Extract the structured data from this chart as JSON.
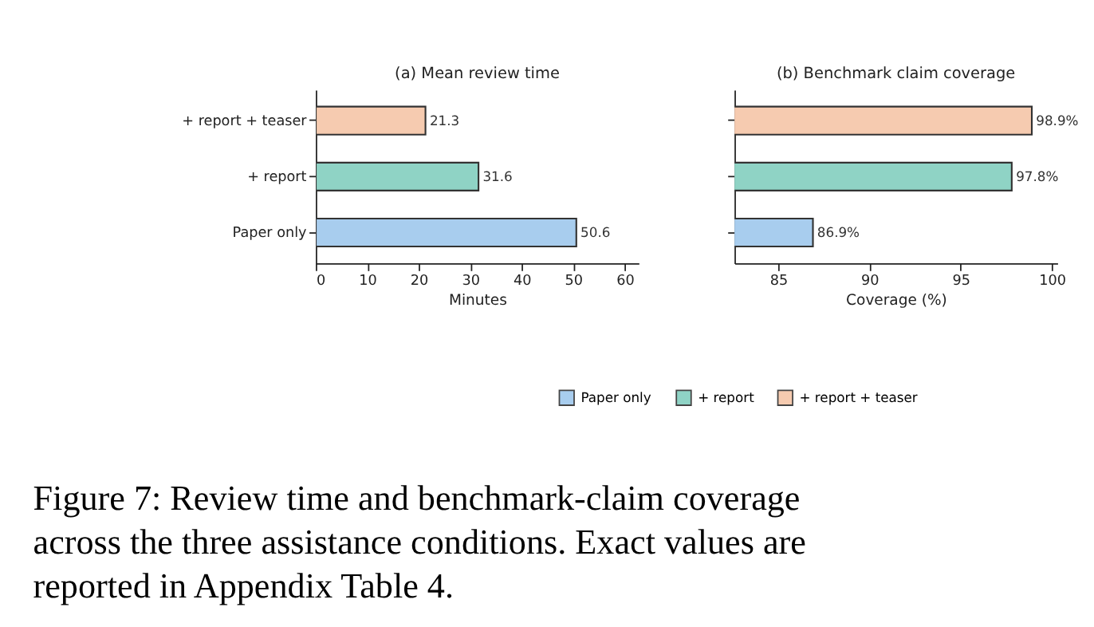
{
  "chart_data": [
    {
      "type": "bar",
      "orientation": "horizontal",
      "title": "(a) Mean review time",
      "xlabel": "Minutes",
      "categories": [
        "+ report + teaser",
        "+ report",
        "Paper only"
      ],
      "series": [
        {
          "name": "Paper only",
          "color": "#a8cdee",
          "values": [
            null,
            null,
            50.6
          ]
        },
        {
          "name": "+ report",
          "color": "#8fd3c5",
          "values": [
            null,
            31.6,
            null
          ]
        },
        {
          "name": "+ report + teaser",
          "color": "#f6cbb0",
          "values": [
            21.3,
            null,
            null
          ]
        }
      ],
      "xlim": [
        0,
        62.7
      ],
      "xticks": [
        0,
        10,
        20,
        30,
        40,
        50,
        60
      ],
      "data_labels": true,
      "legend": "bottom",
      "annotations": [
        "Figure 7: Review time and benchmark-claim coverage across the three assistance conditions. Exact values are reported in Appendix Table 4."
      ]
    },
    {
      "type": "bar",
      "orientation": "horizontal",
      "title": "(b) Benchmark claim coverage",
      "xlabel": "Coverage (%)",
      "categories": [
        null,
        null,
        null
      ],
      "series": [
        {
          "name": "Paper only",
          "color": "#a8cdee",
          "values": [
            null,
            null,
            86.9
          ],
          "value_labels": [
            null,
            null,
            "86.9%"
          ]
        },
        {
          "name": "+ report",
          "color": "#8fd3c5",
          "values": [
            null,
            97.8,
            null
          ],
          "value_labels": [
            null,
            "97.8%",
            null
          ]
        },
        {
          "name": "+ report + teaser",
          "color": "#f6cbb0",
          "values": [
            98.9,
            null,
            null
          ],
          "value_labels": [
            "98.9%",
            null,
            null
          ]
        }
      ],
      "xlim": [
        82.6,
        100.3
      ],
      "xticks": [
        85,
        90,
        95,
        100
      ],
      "tick_labels": "x"
    }
  ]
}
